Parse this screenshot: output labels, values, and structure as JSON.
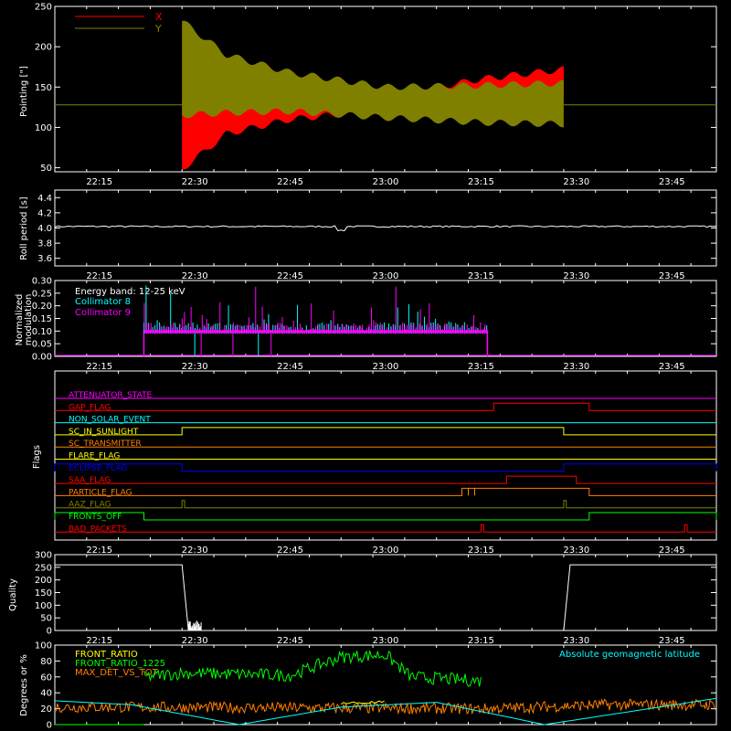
{
  "time_ticks": [
    "22:15",
    "22:30",
    "22:45",
    "23:00",
    "23:15",
    "23:30",
    "23:45"
  ],
  "colors": {
    "axis": "#ffffff",
    "x_pointing": "#ff0000",
    "y_pointing": "#808000",
    "cyan": "#00ffff",
    "magenta": "#ff00ff",
    "green": "#00ff00",
    "orange": "#ff8000"
  },
  "chart_data": [
    {
      "type": "area",
      "ylabel": "Pointing [\"]",
      "ylim": [
        45,
        250
      ],
      "yticks": [
        50,
        100,
        150,
        200,
        250
      ],
      "xlim": [
        "22:08",
        "23:52"
      ],
      "legend": [
        {
          "label": "X",
          "color": "#ff0000"
        },
        {
          "label": "Y",
          "color": "#808000"
        }
      ],
      "series": [
        {
          "name": "X",
          "envelope_time": [
            "22:28",
            "22:35",
            "22:45",
            "23:00",
            "23:15",
            "23:28"
          ],
          "envelope_min": [
            48,
            92,
            110,
            122,
            135,
            140
          ],
          "envelope_max": [
            135,
            130,
            128,
            138,
            160,
            172
          ]
        },
        {
          "name": "Y",
          "envelope_time": [
            "22:28",
            "22:35",
            "22:45",
            "23:00",
            "23:15",
            "23:28"
          ],
          "envelope_min": [
            115,
            118,
            120,
            112,
            106,
            104
          ],
          "envelope_max": [
            232,
            190,
            168,
            150,
            152,
            155
          ]
        }
      ],
      "baseline": 128
    },
    {
      "type": "line",
      "ylabel": "Roll period [s]",
      "ylim": [
        3.5,
        4.5
      ],
      "yticks": [
        "3.6",
        "3.8",
        "4.0",
        "4.2",
        "4.4"
      ],
      "series": [
        {
          "name": "",
          "value": 4.02
        }
      ]
    },
    {
      "type": "bar",
      "ylabel": "Normalized modulation",
      "ylim": [
        0,
        0.3
      ],
      "yticks": [
        "0.00",
        "0.05",
        "0.10",
        "0.15",
        "0.20",
        "0.25",
        "0.30"
      ],
      "legend_title": "Energy band: 12-25 keV",
      "series": [
        {
          "name": "Collimator 8",
          "color": "#00ffff",
          "range": [
            "22:22",
            "23:16"
          ],
          "base": 0.1
        },
        {
          "name": "Collimator 9",
          "color": "#ff00ff",
          "range": [
            "22:22",
            "23:16"
          ],
          "base": 0.1
        }
      ]
    },
    {
      "type": "line",
      "ylabel": "Flags",
      "flags": [
        {
          "label": "ATTENUATOR_STATE",
          "color": "#ff00ff",
          "high": []
        },
        {
          "label": "GAP_FLAG",
          "color": "#ff0000",
          "high": [
            [
              "23:17",
              "23:32"
            ]
          ]
        },
        {
          "label": "NON_SOLAR_EVENT",
          "color": "#00ffff",
          "high": []
        },
        {
          "label": "SC_IN_SUNLIGHT",
          "color": "#ffff00",
          "high": [
            [
              "22:28",
              "23:28"
            ]
          ]
        },
        {
          "label": "SC_TRANSMITTER",
          "color": "#ff8000",
          "high": []
        },
        {
          "label": "FLARE_FLAG",
          "color": "#ffff00",
          "high": []
        },
        {
          "label": "ECLIPSE_FLAG",
          "color": "#0000ff",
          "high": [
            [
              "22:08",
              "22:28"
            ],
            [
              "23:28",
              "23:52"
            ]
          ]
        },
        {
          "label": "SAA_FLAG",
          "color": "#ff0000",
          "high": [
            [
              "23:19",
              "23:30"
            ]
          ]
        },
        {
          "label": "PARTICLE_FLAG",
          "color": "#ff8000",
          "high": [
            [
              "23:12",
              "23:13"
            ],
            [
              "23:13",
              "23:14"
            ],
            [
              "23:14",
              "23:32"
            ]
          ]
        },
        {
          "label": "AAZ_FLAG",
          "color": "#808000",
          "high": [
            [
              "22:28",
              "22:28"
            ],
            [
              "23:28",
              "23:28"
            ]
          ]
        },
        {
          "label": "FRONTS_OFF",
          "color": "#00ff00",
          "high": [
            [
              "22:08",
              "22:22"
            ],
            [
              "23:32",
              "23:52"
            ]
          ]
        },
        {
          "label": "BAD_PACKETS",
          "color": "#ff0000",
          "high": [
            [
              "23:15",
              "23:15"
            ],
            [
              "23:47",
              "23:47"
            ]
          ]
        }
      ]
    },
    {
      "type": "line",
      "ylabel": "Quality",
      "ylim": [
        0,
        300
      ],
      "yticks": [
        0,
        50,
        100,
        150,
        200,
        250,
        300
      ],
      "series": [
        {
          "name": "",
          "x": [
            "22:08",
            "22:28",
            "22:29",
            "23:28",
            "23:29",
            "23:52"
          ],
          "y": [
            260,
            260,
            0,
            0,
            260,
            260
          ]
        }
      ]
    },
    {
      "type": "line",
      "ylabel": "Degrees or %",
      "ylim": [
        0,
        100
      ],
      "yticks": [
        0,
        20,
        40,
        60,
        80,
        100
      ],
      "series": [
        {
          "name": "FRONT_RATIO",
          "color": "#ffff00",
          "x": [
            "22:22",
            "22:53",
            "23:00",
            "23:16"
          ],
          "y": [
            0,
            27,
            28,
            0
          ]
        },
        {
          "name": "FRONT_RATIO_1225",
          "color": "#00ff00",
          "x": [
            "22:22",
            "22:28",
            "22:45",
            "22:53",
            "23:00",
            "23:04",
            "23:15"
          ],
          "y": [
            60,
            65,
            62,
            85,
            88,
            60,
            55
          ]
        },
        {
          "name": "MAX_DET_VS_TOT",
          "color": "#ff8000",
          "x": [
            "22:08",
            "22:22",
            "23:16",
            "23:34",
            "23:52"
          ],
          "y": [
            22,
            22,
            20,
            25,
            25
          ]
        },
        {
          "name": "Absolute geomagnetic latitude",
          "color": "#00ffff",
          "x": [
            "22:08",
            "22:20",
            "22:37",
            "22:53",
            "23:08",
            "23:25",
            "23:52"
          ],
          "y": [
            30,
            25,
            0,
            22,
            28,
            0,
            33
          ]
        }
      ]
    }
  ]
}
